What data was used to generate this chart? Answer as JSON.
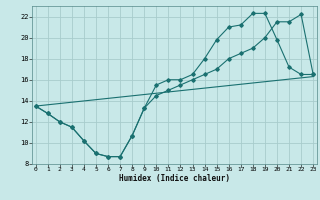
{
  "xlabel": "Humidex (Indice chaleur)",
  "bg_color": "#c8e8e8",
  "grid_color": "#a8cccc",
  "line_color": "#1a7070",
  "xlim_min": 0,
  "xlim_max": 23,
  "ylim_min": 8,
  "ylim_max": 23,
  "xticks": [
    0,
    1,
    2,
    3,
    4,
    5,
    6,
    7,
    8,
    9,
    10,
    11,
    12,
    13,
    14,
    15,
    16,
    17,
    18,
    19,
    20,
    21,
    22,
    23
  ],
  "yticks": [
    8,
    10,
    12,
    14,
    16,
    18,
    20,
    22
  ],
  "curve1_x": [
    0,
    1,
    2,
    3,
    4,
    5,
    6,
    7,
    8,
    9,
    10,
    11,
    12,
    13,
    14,
    15,
    16,
    17,
    18,
    19,
    20,
    21,
    22,
    23
  ],
  "curve1_y": [
    13.5,
    12.8,
    12.0,
    11.5,
    10.2,
    9.0,
    8.7,
    8.7,
    10.7,
    13.3,
    15.5,
    16.0,
    16.0,
    16.5,
    18.0,
    19.8,
    21.0,
    21.2,
    22.3,
    22.3,
    19.8,
    17.2,
    16.5,
    16.5
  ],
  "curve2_x": [
    0,
    1,
    2,
    3,
    4,
    5,
    6,
    7,
    8,
    9,
    10,
    11,
    12,
    13,
    14,
    15,
    16,
    17,
    18,
    19,
    20,
    21,
    22,
    23
  ],
  "curve2_y": [
    13.5,
    12.8,
    12.0,
    11.5,
    10.2,
    9.0,
    8.7,
    8.7,
    10.7,
    13.3,
    14.5,
    15.0,
    15.5,
    16.0,
    16.5,
    17.0,
    18.0,
    18.5,
    19.0,
    20.0,
    21.5,
    21.5,
    22.2,
    16.5
  ],
  "line3_x": [
    0,
    23
  ],
  "line3_y": [
    13.5,
    16.3
  ]
}
